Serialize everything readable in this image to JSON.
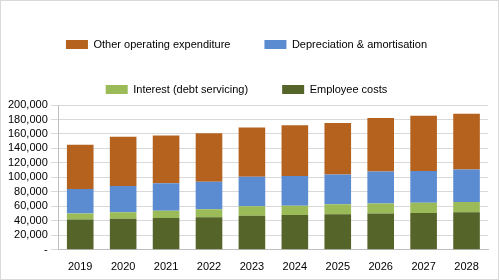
{
  "chart_data": {
    "type": "bar",
    "stacked": true,
    "grid": true,
    "legend": "top",
    "categories": [
      "2019",
      "2020",
      "2021",
      "2022",
      "2023",
      "2024",
      "2025",
      "2026",
      "2027",
      "2028"
    ],
    "series": [
      {
        "name": "Employee costs",
        "color": "#55652a",
        "values": [
          42000,
          43000,
          44000,
          45000,
          47000,
          48000,
          49000,
          50000,
          51000,
          52000
        ]
      },
      {
        "name": "Interest (debt servicing)",
        "color": "#9bbb59",
        "values": [
          8000,
          9000,
          10000,
          11000,
          13000,
          13000,
          14000,
          14000,
          14000,
          14000
        ]
      },
      {
        "name": "Depreciation & amortisation",
        "color": "#5b8bd0",
        "values": [
          34000,
          36000,
          38000,
          38000,
          41000,
          41000,
          41000,
          44000,
          44000,
          45000
        ]
      },
      {
        "name": "Other operating expenditure",
        "color": "#b5621e",
        "values": [
          61000,
          68000,
          66000,
          67000,
          68000,
          70000,
          71000,
          74000,
          76000,
          77000
        ]
      }
    ],
    "ylim": [
      0,
      200000
    ],
    "yticks": [
      {
        "value": 0,
        "label": "-"
      },
      {
        "value": 20000,
        "label": "20,000"
      },
      {
        "value": 40000,
        "label": "40,000"
      },
      {
        "value": 60000,
        "label": "60,000"
      },
      {
        "value": 80000,
        "label": "80,000"
      },
      {
        "value": 100000,
        "label": "100,000"
      },
      {
        "value": 120000,
        "label": "120,000"
      },
      {
        "value": 140000,
        "label": "140,000"
      },
      {
        "value": 160000,
        "label": "160,000"
      },
      {
        "value": 180000,
        "label": "180,000"
      },
      {
        "value": 200000,
        "label": "200,000"
      }
    ]
  }
}
